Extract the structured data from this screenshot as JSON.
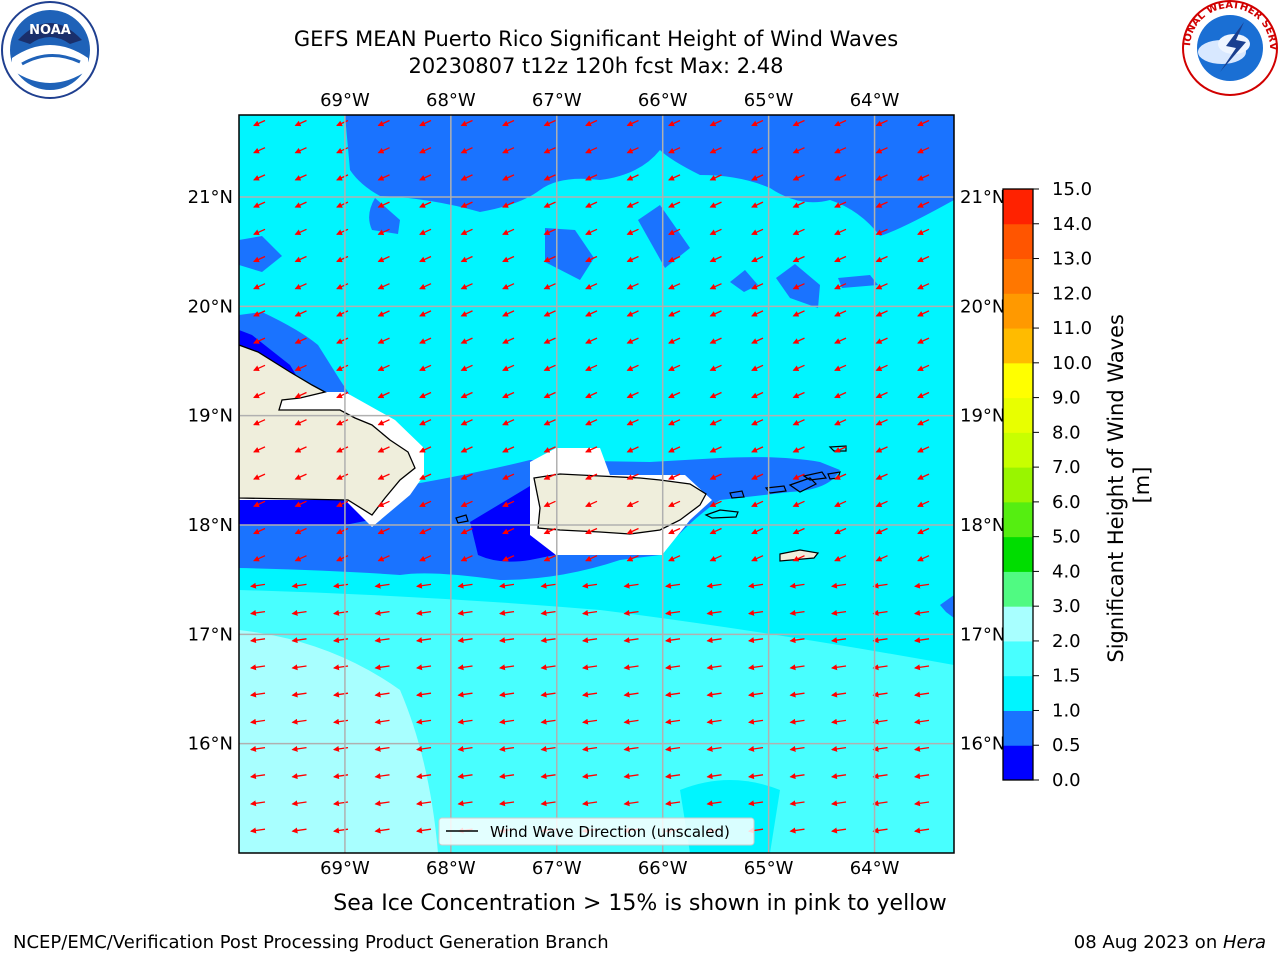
{
  "title": "GEFS MEAN Puerto Rico Significant Height of Wind Waves",
  "subtitle": "20230807 t12z 120h fcst   Max: 2.48",
  "map": {
    "lon_labels": [
      "69°W",
      "68°W",
      "67°W",
      "66°W",
      "65°W",
      "64°W"
    ],
    "lat_labels": [
      "21°N",
      "20°N",
      "19°N",
      "18°N",
      "17°N",
      "16°N"
    ],
    "lon_values": [
      -69,
      -68,
      -67,
      -66,
      -65,
      -64
    ],
    "lat_values": [
      21,
      20,
      19,
      18,
      17,
      16
    ],
    "extent": {
      "lon_min": -70,
      "lon_max": -63.25,
      "lat_min": 15,
      "lat_max": 21.75
    },
    "legend_label": "Wind Wave Direction (unscaled)",
    "vector_color": "#ff0000",
    "land_color": "#efeedc"
  },
  "colorbar": {
    "label": "Significant Height of Wind Waves [m]",
    "ticks": [
      "0.0",
      "0.5",
      "1.0",
      "1.5",
      "2.0",
      "3.0",
      "4.0",
      "5.0",
      "6.0",
      "7.0",
      "8.0",
      "9.0",
      "10.0",
      "11.0",
      "12.0",
      "13.0",
      "14.0",
      "15.0"
    ],
    "colors": [
      "#0000ff",
      "#1a73ff",
      "#00f5ff",
      "#48ffff",
      "#a8ffff",
      "#50fa82",
      "#00dd00",
      "#55ee11",
      "#99f500",
      "#c8ff00",
      "#e8ff00",
      "#ffff00",
      "#ffbb00",
      "#ff9900",
      "#ff7700",
      "#ff5500",
      "#ff2200"
    ]
  },
  "sea_ice_note": "Sea Ice Concentration > 15% is shown in pink to yellow",
  "credit": "NCEP/EMC/Verification Post Processing Product Generation Branch",
  "run_date": "08 Aug 2023 on ",
  "machine": "Hera",
  "logos": {
    "left": "NOAA",
    "right": "NATIONAL WEATHER SERVICE"
  }
}
